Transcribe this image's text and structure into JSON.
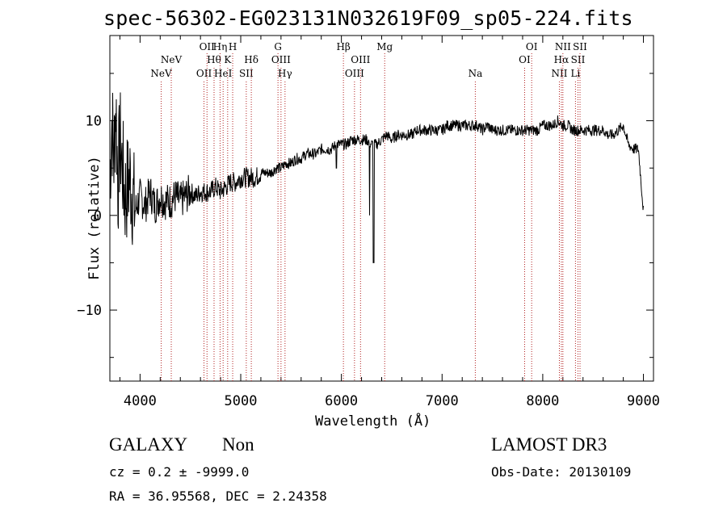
{
  "header": {
    "title": "spec-56302-EG023131N032619F09_sp05-224.fits"
  },
  "chart_data": {
    "type": "line",
    "title": "spec-56302-EG023131N032619F09_sp05-224.fits",
    "xlabel": "Wavelength (Å)",
    "ylabel": "Flux (relative)",
    "xlim": [
      3700,
      9100
    ],
    "ylim": [
      -17.5,
      19
    ],
    "xticks": [
      4000,
      5000,
      6000,
      7000,
      8000,
      9000
    ],
    "yticks": [
      -10,
      0,
      10
    ],
    "series": [
      {
        "name": "spectrum",
        "x": [
          3700,
          3720,
          3740,
          3760,
          3780,
          3800,
          3850,
          3900,
          3950,
          4000,
          4050,
          4100,
          4150,
          4200,
          4250,
          4300,
          4350,
          4400,
          4450,
          4500,
          4550,
          4600,
          4650,
          4700,
          4750,
          4800,
          4850,
          4900,
          4950,
          5000,
          5050,
          5100,
          5150,
          5200,
          5250,
          5300,
          5350,
          5400,
          5450,
          5500,
          5550,
          5600,
          5650,
          5700,
          5750,
          5800,
          5850,
          5900,
          5950,
          6000,
          6050,
          6100,
          6150,
          6200,
          6250,
          6300,
          6350,
          6400,
          6450,
          6500,
          6550,
          6600,
          6650,
          6700,
          6750,
          6800,
          6850,
          6900,
          6950,
          7000,
          7050,
          7100,
          7150,
          7200,
          7250,
          7300,
          7350,
          7400,
          7450,
          7500,
          7550,
          7600,
          7650,
          7700,
          7750,
          7800,
          7850,
          7900,
          7950,
          8000,
          8050,
          8100,
          8150,
          8200,
          8250,
          8300,
          8350,
          8400,
          8450,
          8500,
          8550,
          8600,
          8650,
          8700,
          8750,
          8800,
          8850,
          8900,
          8950,
          9000
        ],
        "values": [
          4,
          10,
          6,
          12,
          3,
          8,
          2,
          4,
          0.5,
          2,
          1,
          2.5,
          1,
          2,
          1.5,
          1.5,
          2,
          1.5,
          2,
          2.5,
          2,
          2.5,
          2.5,
          2.5,
          3,
          2.5,
          3,
          3.5,
          3.5,
          4,
          4,
          4,
          4,
          4.5,
          4.5,
          4.5,
          5,
          5,
          5.5,
          5.5,
          6,
          6,
          6.5,
          6.5,
          6.5,
          7,
          7,
          7,
          7.5,
          7.5,
          7.5,
          8,
          8,
          8,
          8,
          7.5,
          7.5,
          8,
          8.5,
          8,
          8.5,
          8.5,
          8.5,
          8.5,
          9,
          9,
          9,
          9,
          9,
          9,
          9.5,
          9.5,
          9.5,
          9.5,
          9.5,
          9.5,
          9.5,
          9,
          9.5,
          9,
          9,
          9,
          9,
          9,
          9,
          9,
          9,
          9,
          9,
          9.5,
          9.5,
          9.5,
          10,
          9.5,
          9.5,
          9,
          9,
          9,
          9,
          9,
          9,
          9,
          8.5,
          8.5,
          9,
          9.5,
          7.5,
          7,
          7,
          0.5
        ],
        "features": [
          {
            "x": 6320,
            "y": -5
          },
          {
            "x": 6290,
            "y": 1
          }
        ]
      }
    ],
    "lines": [
      {
        "x": 4210,
        "labels": [
          "NeV"
        ],
        "row": 3
      },
      {
        "x": 4310,
        "labels": [
          "NeV"
        ],
        "row": 2
      },
      {
        "x": 4635,
        "labels": [
          "OII"
        ],
        "row": 3
      },
      {
        "x": 4665,
        "labels": [
          "OII"
        ],
        "row": 1
      },
      {
        "x": 4735,
        "labels": [
          "Hθ"
        ],
        "row": 2
      },
      {
        "x": 4795,
        "labels": [
          "Hη"
        ],
        "row": 1
      },
      {
        "x": 4825,
        "labels": [
          "HeI"
        ],
        "row": 3
      },
      {
        "x": 4870,
        "labels": [
          "K"
        ],
        "row": 2
      },
      {
        "x": 4920,
        "labels": [
          "H"
        ],
        "row": 1
      },
      {
        "x": 5055,
        "labels": [
          "SII"
        ],
        "row": 3
      },
      {
        "x": 5105,
        "labels": [
          "Hδ"
        ],
        "row": 2
      },
      {
        "x": 5370,
        "labels": [
          "G"
        ],
        "row": 1
      },
      {
        "x": 5400,
        "labels": [
          "OIII"
        ],
        "row": 2
      },
      {
        "x": 5440,
        "labels": [
          "Hγ"
        ],
        "row": 3
      },
      {
        "x": 6020,
        "labels": [
          "Hβ"
        ],
        "row": 1
      },
      {
        "x": 6130,
        "labels": [
          "OIII"
        ],
        "row": 3
      },
      {
        "x": 6190,
        "labels": [
          "OIII"
        ],
        "row": 2
      },
      {
        "x": 6430,
        "labels": [
          "Mg"
        ],
        "row": 1
      },
      {
        "x": 7330,
        "labels": [
          "Na"
        ],
        "row": 3
      },
      {
        "x": 7820,
        "labels": [
          "OI"
        ],
        "row": 2
      },
      {
        "x": 7890,
        "labels": [
          "OI"
        ],
        "row": 1
      },
      {
        "x": 8165,
        "labels": [
          "NII"
        ],
        "row": 3
      },
      {
        "x": 8185,
        "labels": [
          "Hα"
        ],
        "row": 2
      },
      {
        "x": 8200,
        "labels": [
          "NII"
        ],
        "row": 1
      },
      {
        "x": 8325,
        "labels": [
          "Li"
        ],
        "row": 3
      },
      {
        "x": 8350,
        "labels": [
          "SII"
        ],
        "row": 2
      },
      {
        "x": 8370,
        "labels": [
          "SII"
        ],
        "row": 1
      }
    ],
    "colors": {
      "line": "#000000",
      "marker": "#b22222"
    }
  },
  "footer": {
    "object_type": "GALAXY",
    "subclass": "Non",
    "survey": "LAMOST DR3",
    "cz": "cz = 0.2 ± -9999.0",
    "obs_date": "Obs-Date: 20130109",
    "coords": "RA =  36.95568, DEC =   2.24358"
  }
}
